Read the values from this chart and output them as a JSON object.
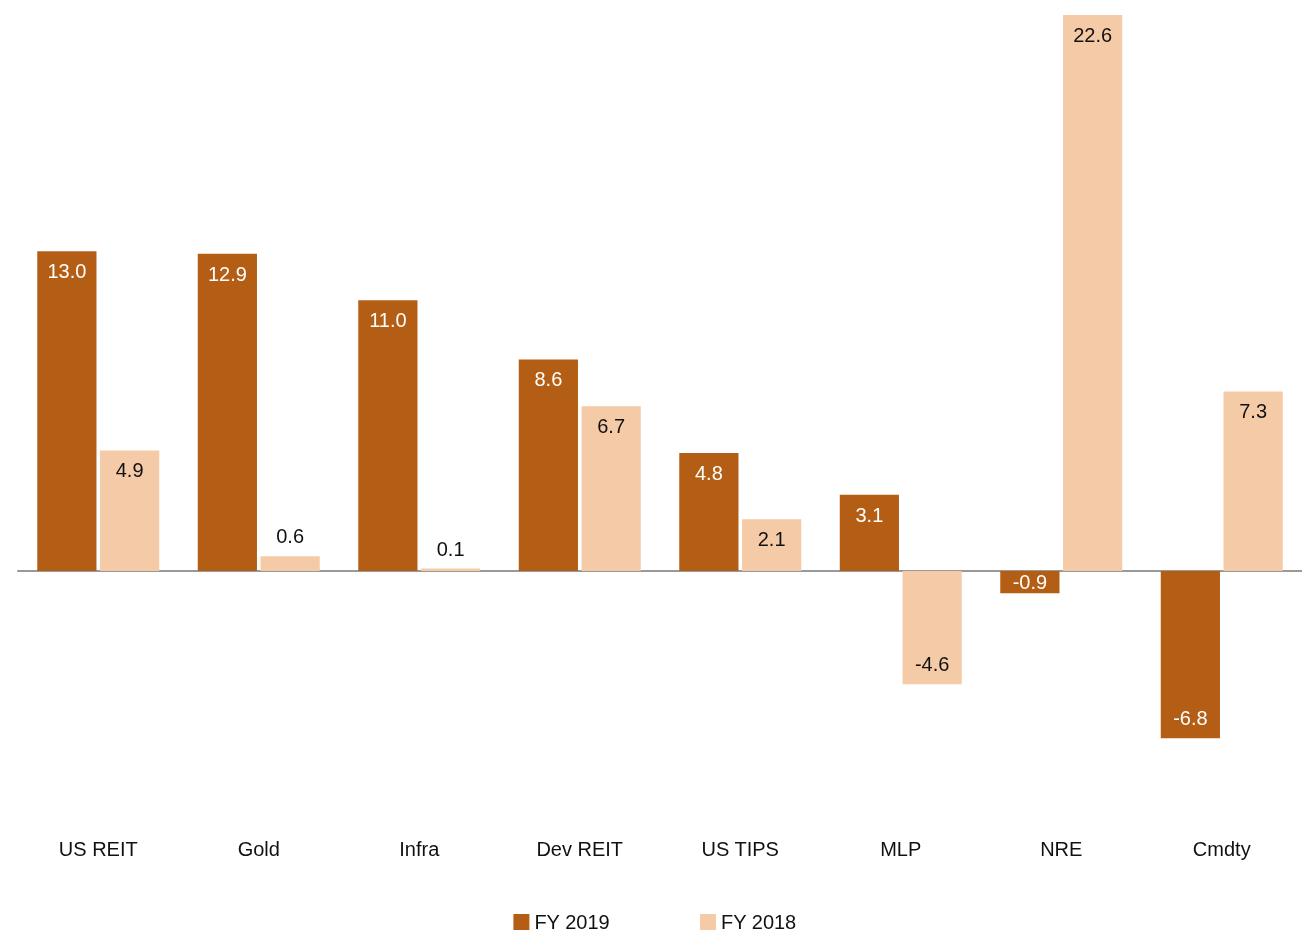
{
  "chart_data": {
    "type": "bar",
    "categories": [
      "US REIT",
      "Gold",
      "Infra",
      "Dev REIT",
      "US TIPS",
      "MLP",
      "NRE",
      "Cmdty"
    ],
    "series": [
      {
        "name": "FY 2019",
        "color": "#b35e14",
        "values": [
          13.0,
          12.9,
          11.0,
          8.6,
          4.8,
          3.1,
          -0.9,
          -6.8
        ],
        "value_labels": [
          "13.0",
          "12.9",
          "11.0",
          "8.6",
          "4.8",
          "3.1",
          "-0.9",
          "-6.8"
        ]
      },
      {
        "name": "FY 2018",
        "color": "#f5cba7",
        "values": [
          4.9,
          0.6,
          0.1,
          6.7,
          2.1,
          -4.6,
          22.6,
          7.3
        ],
        "value_labels": [
          "4.9",
          "0.6",
          "0.1",
          "6.7",
          "2.1",
          "-4.6",
          "22.6",
          "7.3"
        ]
      }
    ],
    "legend": "bottom"
  }
}
